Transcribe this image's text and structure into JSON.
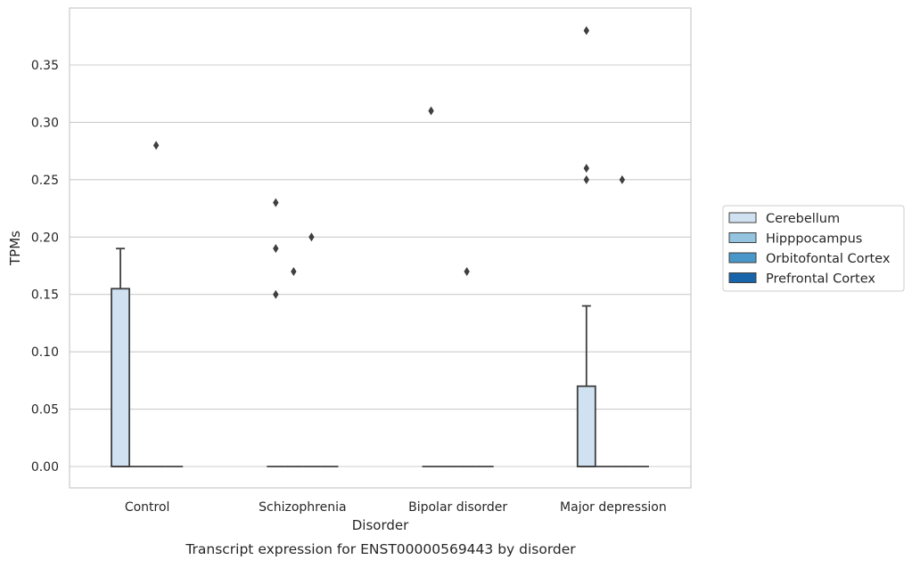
{
  "chart_data": {
    "type": "box",
    "title": "Transcript expression for ENST00000569443 by disorder",
    "xlabel": "Disorder",
    "ylabel": "TPMs",
    "ylim": [
      -0.018,
      0.398
    ],
    "yticks": [
      "0.00",
      "0.05",
      "0.10",
      "0.15",
      "0.20",
      "0.25",
      "0.30",
      "0.35"
    ],
    "grid": true,
    "legend_position": "right",
    "categories": [
      "Control",
      "Schizophrenia",
      "Bipolar disorder",
      "Major depression"
    ],
    "series": [
      {
        "name": "Cerebellum",
        "color": "#d0e1f2",
        "boxes": [
          {
            "q1": 0.0,
            "median": 0.0,
            "q3": 0.155,
            "whisker_low": 0.0,
            "whisker_high": 0.19,
            "outliers": []
          },
          {
            "q1": 0.0,
            "median": 0.0,
            "q3": 0.0,
            "whisker_low": 0.0,
            "whisker_high": 0.0,
            "outliers": [
              0.23,
              0.19,
              0.15
            ]
          },
          {
            "q1": 0.0,
            "median": 0.0,
            "q3": 0.0,
            "whisker_low": 0.0,
            "whisker_high": 0.0,
            "outliers": [
              0.31
            ]
          },
          {
            "q1": 0.0,
            "median": 0.0,
            "q3": 0.07,
            "whisker_low": 0.0,
            "whisker_high": 0.14,
            "outliers": [
              0.38,
              0.26,
              0.25
            ]
          }
        ]
      },
      {
        "name": "Hipppocampus",
        "color": "#94c4df",
        "boxes": [
          {
            "q1": 0.0,
            "median": 0.0,
            "q3": 0.0,
            "whisker_low": 0.0,
            "whisker_high": 0.0,
            "outliers": []
          },
          {
            "q1": 0.0,
            "median": 0.0,
            "q3": 0.0,
            "whisker_low": 0.0,
            "whisker_high": 0.0,
            "outliers": [
              0.17
            ]
          },
          {
            "q1": 0.0,
            "median": 0.0,
            "q3": 0.0,
            "whisker_low": 0.0,
            "whisker_high": 0.0,
            "outliers": []
          },
          {
            "q1": 0.0,
            "median": 0.0,
            "q3": 0.0,
            "whisker_low": 0.0,
            "whisker_high": 0.0,
            "outliers": []
          }
        ]
      },
      {
        "name": "Orbitofontal Cortex",
        "color": "#4a98c9",
        "boxes": [
          {
            "q1": 0.0,
            "median": 0.0,
            "q3": 0.0,
            "whisker_low": 0.0,
            "whisker_high": 0.0,
            "outliers": [
              0.28
            ]
          },
          {
            "q1": 0.0,
            "median": 0.0,
            "q3": 0.0,
            "whisker_low": 0.0,
            "whisker_high": 0.0,
            "outliers": [
              0.2
            ]
          },
          {
            "q1": 0.0,
            "median": 0.0,
            "q3": 0.0,
            "whisker_low": 0.0,
            "whisker_high": 0.0,
            "outliers": [
              0.17
            ]
          },
          {
            "q1": 0.0,
            "median": 0.0,
            "q3": 0.0,
            "whisker_low": 0.0,
            "whisker_high": 0.0,
            "outliers": [
              0.25
            ]
          }
        ]
      },
      {
        "name": "Prefrontal Cortex",
        "color": "#1764ab",
        "boxes": [
          {
            "q1": 0.0,
            "median": 0.0,
            "q3": 0.0,
            "whisker_low": 0.0,
            "whisker_high": 0.0,
            "outliers": []
          },
          {
            "q1": 0.0,
            "median": 0.0,
            "q3": 0.0,
            "whisker_low": 0.0,
            "whisker_high": 0.0,
            "outliers": []
          },
          {
            "q1": 0.0,
            "median": 0.0,
            "q3": 0.0,
            "whisker_low": 0.0,
            "whisker_high": 0.0,
            "outliers": []
          },
          {
            "q1": 0.0,
            "median": 0.0,
            "q3": 0.0,
            "whisker_low": 0.0,
            "whisker_high": 0.0,
            "outliers": []
          }
        ]
      }
    ]
  }
}
